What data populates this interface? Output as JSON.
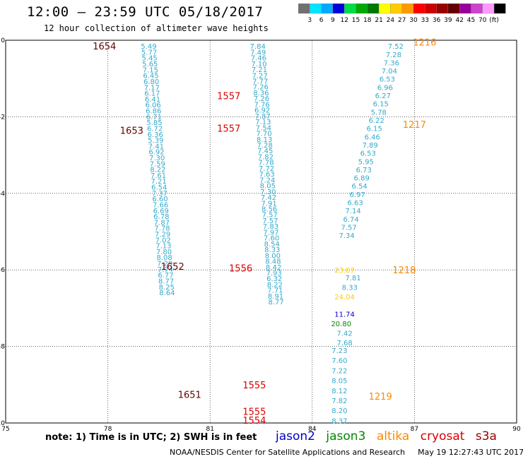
{
  "header": {
    "title": "12:00 – 23:59 UTC 05/18/2017",
    "subtitle": "12 hour collection of altimeter wave heights"
  },
  "colorbar": {
    "colors": [
      "#707070",
      "#00e5ff",
      "#00aaff",
      "#0000dd",
      "#00dd44",
      "#00aa00",
      "#007700",
      "#ffff00",
      "#ffcc00",
      "#ff9900",
      "#ff0000",
      "#cc0000",
      "#990000",
      "#660000",
      "#990099",
      "#cc44cc",
      "#ff99ff",
      "#000000"
    ],
    "labels": [
      "3",
      "6",
      "9",
      "12",
      "15",
      "18",
      "21",
      "24",
      "27",
      "30",
      "33",
      "36",
      "39",
      "42",
      "45",
      "70",
      "(ft)"
    ]
  },
  "map": {
    "x_ticks": [
      "75",
      "78",
      "81",
      "84",
      "87",
      "90"
    ],
    "y_ticks": [
      "0",
      "-2",
      "-4",
      "-6",
      "-8",
      "-10"
    ],
    "tracks": [
      {
        "x": 79.2,
        "y0": -0.15,
        "step": 0.1533,
        "color": "#33aacc",
        "values": [
          "5.49",
          "5.77",
          "5.45",
          "5.65",
          "7.15",
          "6.45",
          "6.80",
          "7.17",
          "6.17",
          "6.41",
          "6.06",
          "6.86",
          "6.71",
          "5.85",
          "6.72",
          "6.36",
          "5.39",
          "7.41",
          "6.92",
          "7.30",
          "7.59",
          "8.22",
          "7.61",
          "7.21",
          "6.54",
          "7.37",
          "6.60",
          "7.66",
          "6.69",
          "6.78",
          "7.87",
          "7.78",
          "7.29",
          "7.02",
          "7.13",
          "7.80",
          "8.08",
          "7.29",
          "7.74",
          "6.77",
          "8.77",
          "8.25",
          "8.64"
        ]
      },
      {
        "x": 82.4,
        "y0": -0.15,
        "step": 0.1518,
        "color": "#33aacc",
        "values": [
          "7.84",
          "7.49",
          "7.46",
          "7.10",
          "7.21",
          "7.27",
          "7.77",
          "7.26",
          "8.36",
          "7.26",
          "7.76",
          "6.92",
          "7.87",
          "7.13",
          "7.54",
          "7.70",
          "8.13",
          "7.28",
          "7.45",
          "7.82",
          "7.78",
          "7.72",
          "7.63",
          "7.24",
          "8.05",
          "7.30",
          "7.42",
          "7.91",
          "8.56",
          "7.57",
          "7.57",
          "7.83",
          "7.97",
          "7.60",
          "8.54",
          "8.33",
          "8.00",
          "8.48",
          "8.42",
          "7.93",
          "6.32",
          "8.22",
          "7.71",
          "8.91",
          "8.77"
        ]
      },
      {
        "x": 84.8,
        "y0": -8.1,
        "step": 0.2617,
        "color": "#33aacc",
        "values": [
          "7.23",
          "7.60",
          "7.22",
          "8.05",
          "8.12",
          "7.82",
          "8.20",
          "8.37"
        ]
      },
      {
        "x": 86.45,
        "y0": -0.15,
        "step": 0.215,
        "color": "#33aacc",
        "values": [
          "7.52",
          "7.28",
          "7.36",
          "7.04",
          "6.53",
          "6.96",
          "6.27",
          "6.15",
          "5.78",
          "6.22",
          "6.15",
          "6.46",
          "7.89",
          "6.53",
          "5.95",
          "6.73",
          "6.89",
          "6.54",
          "6.97",
          "6.63",
          "7.14",
          "6.74",
          "7.57",
          "7.34"
        ]
      }
    ],
    "special_points": [
      {
        "text": "23.07",
        "x": 84.95,
        "y": -6.0,
        "color": "#ffcc00"
      },
      {
        "text": "7.81",
        "x": 85.2,
        "y": -6.2,
        "color": "#33aacc"
      },
      {
        "text": "8.33",
        "x": 85.1,
        "y": -6.45,
        "color": "#33aacc"
      },
      {
        "text": "24.04",
        "x": 84.95,
        "y": -6.7,
        "color": "#ffcc00"
      },
      {
        "text": "11.74",
        "x": 84.95,
        "y": -7.15,
        "color": "#0000cc"
      },
      {
        "text": "20.80",
        "x": 84.85,
        "y": -7.4,
        "color": "#008800"
      },
      {
        "text": "7.42",
        "x": 84.95,
        "y": -7.65,
        "color": "#33aacc"
      },
      {
        "text": "7.68",
        "x": 84.95,
        "y": -7.9,
        "color": "#33aacc"
      }
    ],
    "pass_labels": [
      {
        "text": "1654",
        "x": 77.9,
        "y": -0.15,
        "color": "#660000"
      },
      {
        "text": "1653",
        "x": 78.7,
        "y": -2.35,
        "color": "#660000"
      },
      {
        "text": "1652",
        "x": 79.9,
        "y": -5.9,
        "color": "#660000"
      },
      {
        "text": "1651",
        "x": 80.4,
        "y": -9.25,
        "color": "#660000"
      },
      {
        "text": "1557",
        "x": 81.55,
        "y": -1.45,
        "color": "#dd0000"
      },
      {
        "text": "1557",
        "x": 81.55,
        "y": -2.3,
        "color": "#dd0000"
      },
      {
        "text": "1556",
        "x": 81.9,
        "y": -5.95,
        "color": "#dd0000"
      },
      {
        "text": "1555",
        "x": 82.3,
        "y": -9.0,
        "color": "#dd0000"
      },
      {
        "text": "1555",
        "x": 82.3,
        "y": -9.7,
        "color": "#dd0000"
      },
      {
        "text": "1554",
        "x": 82.3,
        "y": -9.93,
        "color": "#dd0000"
      },
      {
        "text": "1216",
        "x": 87.3,
        "y": -0.05,
        "color": "#ff8800"
      },
      {
        "text": "1217",
        "x": 87.0,
        "y": -2.2,
        "color": "#ff8800"
      },
      {
        "text": "1218",
        "x": 86.7,
        "y": -6.0,
        "color": "#ff8800"
      },
      {
        "text": "1219",
        "x": 86.0,
        "y": -9.3,
        "color": "#ff8800"
      }
    ]
  },
  "footer": {
    "note": "note: 1) Time is in UTC; 2) SWH is in feet",
    "legend": [
      {
        "label": "jason2",
        "color": "#0000cc"
      },
      {
        "label": "jason3",
        "color": "#008800"
      },
      {
        "label": "altika",
        "color": "#ff8800"
      },
      {
        "label": "cryosat",
        "color": "#dd0000"
      },
      {
        "label": "s3a",
        "color": "#990000"
      }
    ],
    "credit": "NOAA/NESDIS Center for Satellite Applications and Research",
    "timestamp": "May 19 12:27:43 UTC 2017"
  }
}
